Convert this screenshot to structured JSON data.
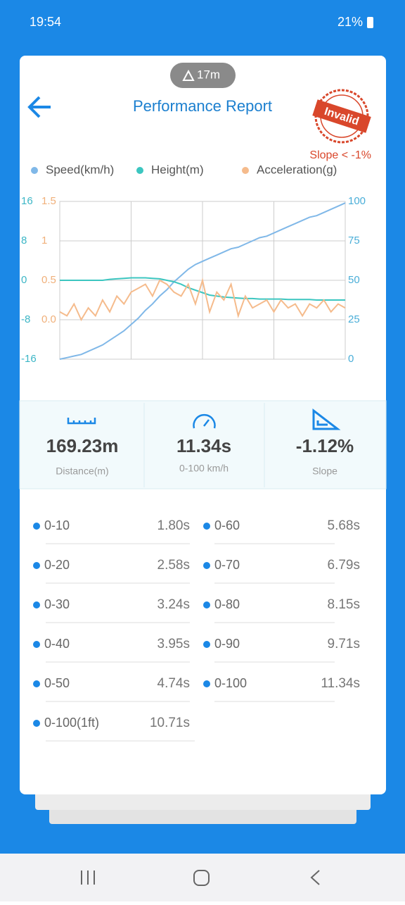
{
  "status": {
    "time": "19:54",
    "battery": "21%"
  },
  "badge": "17m",
  "header": {
    "title": "Performance Report",
    "stamp": "Invalid",
    "stamp_note": "Slope < -1%"
  },
  "chart_data": {
    "type": "line",
    "series": [
      {
        "name": "Speed(km/h)",
        "color": "#80b8e8",
        "axis": "y2",
        "values": [
          0,
          1,
          2,
          3,
          5,
          7,
          9,
          12,
          15,
          18,
          22,
          26,
          31,
          35,
          40,
          44,
          49,
          53,
          57,
          60,
          62,
          64,
          66,
          68,
          70,
          71,
          73,
          75,
          77,
          78,
          80,
          82,
          84,
          86,
          88,
          90,
          91,
          93,
          95,
          97,
          99
        ]
      },
      {
        "name": "Height(m)",
        "color": "#3cc6c0",
        "axis": "y",
        "values": [
          0,
          0,
          0,
          0,
          0,
          0,
          0,
          0.2,
          0.3,
          0.4,
          0.5,
          0.5,
          0.5,
          0.4,
          0.3,
          0,
          -0.3,
          -0.8,
          -1.5,
          -2,
          -2.5,
          -3,
          -3.2,
          -3.4,
          -3.5,
          -3.6,
          -3.7,
          -3.7,
          -3.8,
          -3.8,
          -3.8,
          -3.8,
          -3.9,
          -3.9,
          -3.9,
          -3.9,
          -4,
          -4,
          -4,
          -4,
          -4
        ]
      },
      {
        "name": "Acceleration(g)",
        "color": "#f5bb8c",
        "axis": "y3",
        "values": [
          0.1,
          0.05,
          0.2,
          0.0,
          0.15,
          0.05,
          0.25,
          0.1,
          0.3,
          0.2,
          0.35,
          0.4,
          0.45,
          0.3,
          0.5,
          0.45,
          0.35,
          0.3,
          0.45,
          0.2,
          0.5,
          0.1,
          0.35,
          0.25,
          0.45,
          0.05,
          0.3,
          0.15,
          0.2,
          0.25,
          0.1,
          0.25,
          0.15,
          0.2,
          0.05,
          0.2,
          0.15,
          0.25,
          0.1,
          0.2,
          0.15
        ]
      }
    ],
    "ylim": [
      -16,
      16
    ],
    "yticks": [
      -16,
      -8,
      0,
      8,
      16
    ],
    "y3lim": [
      -0.5,
      1.5
    ],
    "y3ticks": [
      {
        "value": 0,
        "label": "0.0"
      },
      0.5,
      1,
      1.5
    ],
    "y2lim": [
      0,
      100
    ],
    "y2ticks": [
      0,
      25,
      50,
      75,
      100
    ],
    "grid": true
  },
  "stats": [
    {
      "value": "169.23m",
      "label": "Distance(m)"
    },
    {
      "value": "11.34s",
      "label": "0-100 km/h"
    },
    {
      "value": "-1.12%",
      "label": "Slope"
    }
  ],
  "splits": [
    {
      "label": "0-10",
      "time": "1.80s"
    },
    {
      "label": "0-60",
      "time": "5.68s"
    },
    {
      "label": "0-20",
      "time": "2.58s"
    },
    {
      "label": "0-70",
      "time": "6.79s"
    },
    {
      "label": "0-30",
      "time": "3.24s"
    },
    {
      "label": "0-80",
      "time": "8.15s"
    },
    {
      "label": "0-40",
      "time": "3.95s"
    },
    {
      "label": "0-90",
      "time": "9.71s"
    },
    {
      "label": "0-50",
      "time": "4.74s"
    },
    {
      "label": "0-100",
      "time": "11.34s"
    },
    {
      "label": "0-100(1ft)",
      "time": "10.71s"
    }
  ]
}
